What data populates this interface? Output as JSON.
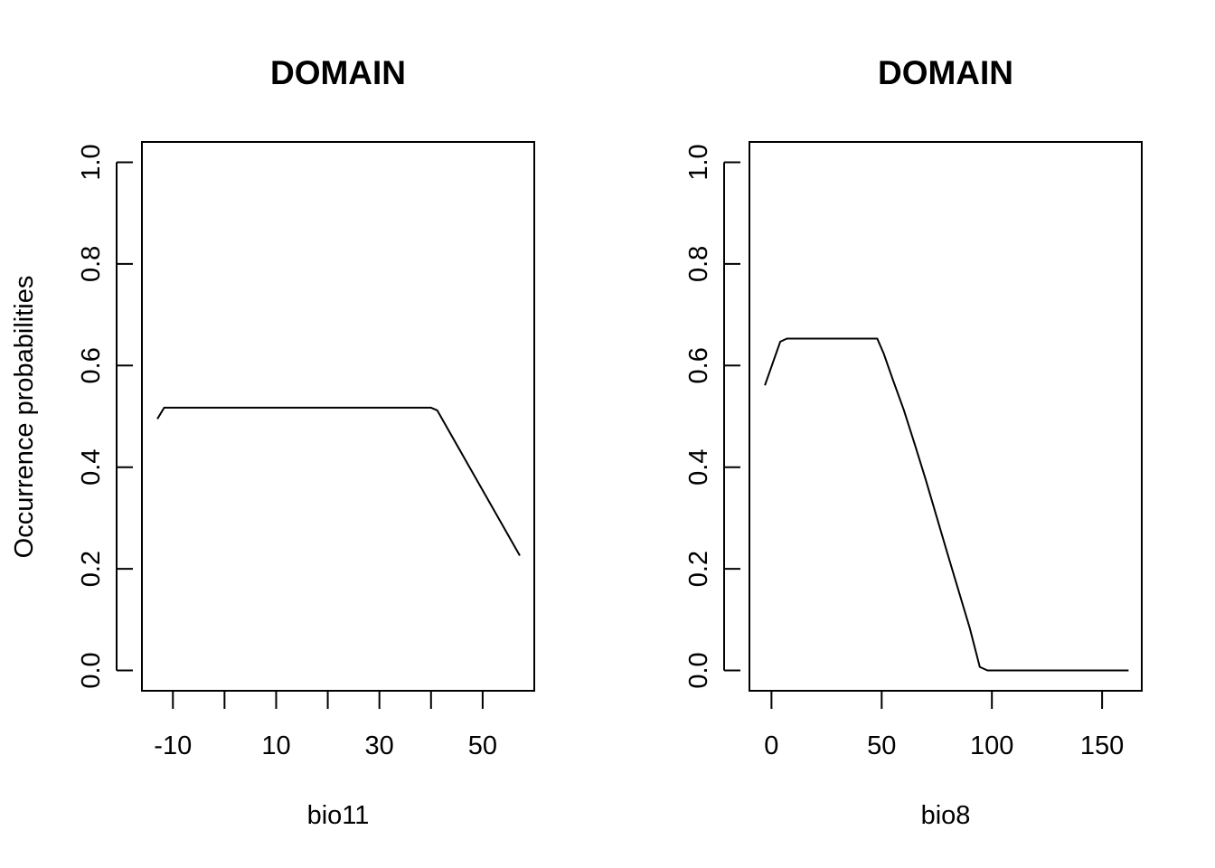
{
  "chart_data": [
    {
      "type": "line",
      "title": "DOMAIN",
      "xlabel": "bio11",
      "ylabel": "Occurrence probabilities",
      "xlim": [
        -16,
        60
      ],
      "ylim": [
        -0.04,
        1.04
      ],
      "xticks": [
        -10,
        0,
        10,
        20,
        30,
        40,
        50
      ],
      "xtick_labels": [
        "-10",
        "",
        "10",
        "",
        "30",
        "",
        "50"
      ],
      "yticks": [
        0.0,
        0.2,
        0.4,
        0.6,
        0.8,
        1.0
      ],
      "ytick_labels": [
        "0.0",
        "0.2",
        "0.4",
        "0.6",
        "0.8",
        "1.0"
      ],
      "grid": false,
      "series": [
        {
          "x": [
            -13,
            -11.7,
            0,
            10,
            20,
            30,
            40,
            41.2,
            57.2
          ],
          "y": [
            0.495,
            0.517,
            0.517,
            0.517,
            0.517,
            0.517,
            0.517,
            0.512,
            0.226
          ]
        }
      ]
    },
    {
      "type": "line",
      "title": "DOMAIN",
      "xlabel": "bio8",
      "ylabel": "",
      "xlim": [
        -10,
        168
      ],
      "ylim": [
        -0.04,
        1.04
      ],
      "xticks": [
        0,
        50,
        100,
        150
      ],
      "xtick_labels": [
        "0",
        "50",
        "100",
        "150"
      ],
      "yticks": [
        0.0,
        0.2,
        0.4,
        0.6,
        0.8,
        1.0
      ],
      "ytick_labels": [
        "0.0",
        "0.2",
        "0.4",
        "0.6",
        "0.8",
        "1.0"
      ],
      "grid": false,
      "series": [
        {
          "x": [
            -3,
            4,
            7,
            20,
            48,
            51,
            55,
            60,
            65,
            70,
            80,
            90,
            94.5,
            98,
            110,
            130,
            162
          ],
          "y": [
            0.561,
            0.647,
            0.653,
            0.653,
            0.653,
            0.623,
            0.573,
            0.513,
            0.445,
            0.375,
            0.228,
            0.083,
            0.007,
            0.0,
            0.0,
            0.0,
            0.0
          ]
        }
      ]
    }
  ]
}
